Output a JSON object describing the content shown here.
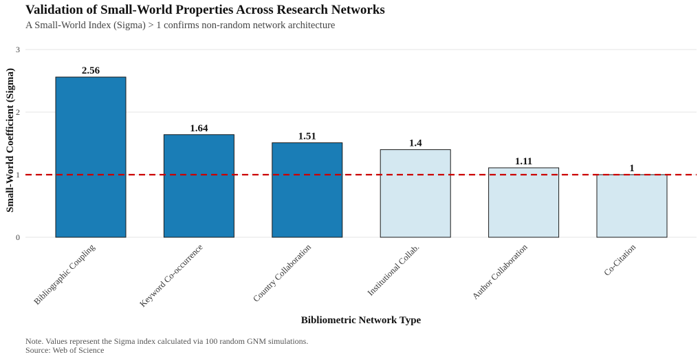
{
  "title": "Validation of Small-World Properties Across Research Networks",
  "subtitle": "A Small-World Index (Sigma) > 1 confirms non-random network architecture",
  "caption_line1": "Note. Values represent the Sigma index calculated via 100 random GNM simulations.",
  "caption_line2": "Source: Web of Science",
  "chart_data": {
    "type": "bar",
    "categories": [
      "Bibliographic Coupling",
      "Keyword Co-occurrence",
      "Country Collaboration",
      "Institutional Collab.",
      "Author Collaboration",
      "Co-Citation"
    ],
    "values": [
      2.56,
      1.64,
      1.51,
      1.4,
      1.11,
      1
    ],
    "value_labels": [
      "2.56",
      "1.64",
      "1.51",
      "1.4",
      "1.11",
      "1"
    ],
    "highlighted": [
      true,
      true,
      true,
      false,
      false,
      false
    ],
    "xlabel": "Bibliometric Network Type",
    "ylabel": "Small-World Coefficient (Sigma)",
    "ylim": [
      0,
      3
    ],
    "yticks": [
      0,
      1,
      2,
      3
    ],
    "ytick_labels": [
      "0",
      "1",
      "2",
      "3"
    ],
    "reference_line": 1,
    "grid": true,
    "legend": "none"
  },
  "colors": {
    "highlight": "#1a7db6",
    "muted": "#d4e8f1",
    "reference": "#cc0000",
    "grid": "#e6e6e6"
  }
}
